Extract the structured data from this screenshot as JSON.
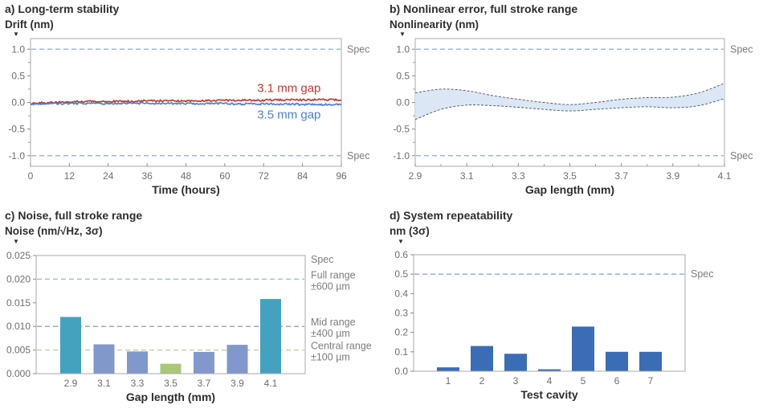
{
  "ui": {
    "axis_marker": "▼"
  },
  "chart_data": [
    {
      "id": "a",
      "type": "line",
      "title": "a) Long-term stability",
      "ylabel": "Drift (nm)",
      "xlabel": "Time (hours)",
      "xlim": [
        0,
        96
      ],
      "ylim": [
        -1.2,
        1.2
      ],
      "xtick_values": [
        0,
        12,
        24,
        36,
        48,
        60,
        72,
        84,
        96
      ],
      "xtick_labels": [
        "0",
        "12",
        "24",
        "36",
        "48",
        "60",
        "72",
        "84",
        "96"
      ],
      "ytick_values": [
        1.0,
        0.5,
        0.0,
        -0.5,
        -1.0
      ],
      "ytick_labels": [
        "1.0",
        "0.5",
        "0.0",
        "-0.5",
        "-1.0"
      ],
      "minor_yticks": [
        0.75,
        0.25,
        -0.25,
        -0.75
      ],
      "spec_lines": [
        {
          "y": 1.0,
          "label": "Spec",
          "color": "#8fa9d6"
        },
        {
          "y": -1.0,
          "label": "Spec",
          "color": "#8fa9d6"
        }
      ],
      "series": [
        {
          "name": "3.1 mm gap",
          "color": "#c03a31",
          "noisy": true,
          "label_pos": {
            "x": 70,
            "y": 0.2
          },
          "points": [
            [
              0,
              -0.02
            ],
            [
              6,
              0.0
            ],
            [
              12,
              0.01
            ],
            [
              18,
              0.02
            ],
            [
              24,
              0.02
            ],
            [
              30,
              0.02
            ],
            [
              36,
              0.03
            ],
            [
              42,
              0.03
            ],
            [
              48,
              0.03
            ],
            [
              54,
              0.03
            ],
            [
              60,
              0.04
            ],
            [
              66,
              0.04
            ],
            [
              72,
              0.04
            ],
            [
              78,
              0.05
            ],
            [
              84,
              0.05
            ],
            [
              90,
              0.05
            ],
            [
              96,
              0.05
            ]
          ]
        },
        {
          "name": "3.5 mm gap",
          "color": "#4b80d1",
          "noisy": true,
          "label_pos": {
            "x": 70,
            "y": -0.3
          },
          "points": [
            [
              0,
              -0.03
            ],
            [
              6,
              -0.02
            ],
            [
              12,
              -0.02
            ],
            [
              18,
              -0.02
            ],
            [
              24,
              -0.02
            ],
            [
              30,
              -0.01
            ],
            [
              36,
              -0.02
            ],
            [
              42,
              -0.02
            ],
            [
              48,
              -0.02
            ],
            [
              54,
              -0.02
            ],
            [
              60,
              -0.02
            ],
            [
              66,
              -0.03
            ],
            [
              72,
              -0.03
            ],
            [
              78,
              -0.03
            ],
            [
              84,
              -0.04
            ],
            [
              90,
              -0.04
            ],
            [
              96,
              -0.04
            ]
          ]
        }
      ]
    },
    {
      "id": "b",
      "type": "band",
      "title": "b) Nonlinear error, full stroke range",
      "ylabel": "Nonlinearity (nm)",
      "xlabel": "Gap length (mm)",
      "xlim": [
        2.9,
        4.1
      ],
      "ylim": [
        -1.2,
        1.2
      ],
      "xtick_values": [
        2.9,
        3.1,
        3.3,
        3.5,
        3.7,
        3.9,
        4.1
      ],
      "xtick_labels": [
        "2.9",
        "3.1",
        "3.3",
        "3.5",
        "3.7",
        "3.9",
        "4.1"
      ],
      "minor_xticks": [
        3.0,
        3.2,
        3.4,
        3.6,
        3.8,
        4.0
      ],
      "ytick_values": [
        1.0,
        0.5,
        0.0,
        -0.5,
        -1.0
      ],
      "ytick_labels": [
        "1.0",
        "0.5",
        "0.0",
        "-0.5",
        "-1.0"
      ],
      "minor_yticks": [
        0.75,
        0.25,
        -0.25,
        -0.75
      ],
      "spec_lines": [
        {
          "y": 1.0,
          "label": "Spec",
          "color": "#8fa9d6"
        },
        {
          "y": -1.0,
          "label": "Spec",
          "color": "#8fa9d6"
        }
      ],
      "band": {
        "fill": "#dbe7f5",
        "edge": "#4a5560",
        "x": [
          2.9,
          3.0,
          3.1,
          3.2,
          3.3,
          3.4,
          3.5,
          3.6,
          3.7,
          3.8,
          3.9,
          4.0,
          4.1
        ],
        "upper": [
          0.18,
          0.25,
          0.22,
          0.13,
          0.06,
          0.0,
          -0.04,
          0.0,
          0.06,
          0.09,
          0.1,
          0.18,
          0.36
        ],
        "lower": [
          -0.32,
          -0.13,
          -0.05,
          -0.06,
          -0.09,
          -0.13,
          -0.16,
          -0.13,
          -0.1,
          -0.08,
          -0.1,
          -0.06,
          0.07
        ]
      }
    },
    {
      "id": "c",
      "type": "bar",
      "title": "c) Noise, full stroke range",
      "ylabel": "Noise (nm/√Hz, 3σ)",
      "xlabel": "Gap length (mm)",
      "categories": [
        "2.9",
        "3.1",
        "3.3",
        "3.5",
        "3.7",
        "3.9",
        "4.1"
      ],
      "values": [
        0.012,
        0.0062,
        0.0047,
        0.0021,
        0.0046,
        0.0061,
        0.0158
      ],
      "bar_colors": [
        "#44a2c1",
        "#8098cc",
        "#8098cc",
        "#a9c877",
        "#8098cc",
        "#8098cc",
        "#44a2c1"
      ],
      "ylim": [
        0,
        0.025
      ],
      "ytick_values": [
        0.025,
        0.02,
        0.015,
        0.01,
        0.005,
        0.0
      ],
      "ytick_labels": [
        "0.025",
        "0.020",
        "0.015",
        "0.010",
        "0.005",
        "0.000"
      ],
      "spec_header": "Spec",
      "spec_lines": [
        {
          "y": 0.02,
          "label": [
            "Full range",
            "±600 µm"
          ],
          "color": "#7cc5cd"
        },
        {
          "y": 0.01,
          "label": [
            "Mid range",
            "±400 µm"
          ],
          "color": "#8ca3d0"
        },
        {
          "y": 0.005,
          "label": [
            "Central range",
            "±100 µm"
          ],
          "color": "#c2cc8a"
        }
      ]
    },
    {
      "id": "d",
      "type": "bar",
      "title": "d) System repeatability",
      "ylabel": "nm (3σ)",
      "xlabel": "Test cavity",
      "categories": [
        "1",
        "2",
        "3",
        "4",
        "5",
        "6",
        "7"
      ],
      "values": [
        0.02,
        0.13,
        0.09,
        0.01,
        0.23,
        0.1,
        0.1
      ],
      "bar_colors": [
        "#3b6db6",
        "#3b6db6",
        "#3b6db6",
        "#3b6db6",
        "#3b6db6",
        "#3b6db6",
        "#3b6db6"
      ],
      "ylim": [
        0,
        0.6
      ],
      "ytick_values": [
        0.6,
        0.5,
        0.4,
        0.3,
        0.2,
        0.1,
        0.0
      ],
      "ytick_labels": [
        "0.6",
        "0.5",
        "0.4",
        "0.3",
        "0.2",
        "0.1",
        "0.0"
      ],
      "spec_lines": [
        {
          "y": 0.5,
          "label": "Spec",
          "color": "#8fa9d6"
        }
      ]
    }
  ]
}
